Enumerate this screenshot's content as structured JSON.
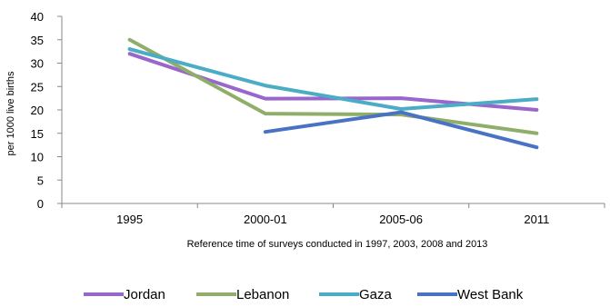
{
  "chart_data": {
    "type": "line",
    "categories": [
      "1995",
      "2000-01",
      "2005-06",
      "2011"
    ],
    "xlabel": "Reference time of surveys  conducted in 1997, 2003, 2008 and 2013",
    "ylabel": "per 1000 live births",
    "ylim": [
      0,
      40
    ],
    "yticks": [
      0,
      5,
      10,
      15,
      20,
      25,
      30,
      35,
      40
    ],
    "grid": false,
    "legend_position": "bottom",
    "series": [
      {
        "name": "Jordan",
        "color": "#9966cc",
        "values": [
          32,
          22.4,
          22.5,
          20
        ]
      },
      {
        "name": "Lebanon",
        "color": "#8fae6a",
        "values": [
          35,
          19.2,
          19,
          15
        ]
      },
      {
        "name": "Gaza",
        "color": "#4bacc6",
        "values": [
          33,
          25.2,
          20.2,
          22.3
        ]
      },
      {
        "name": "West Bank",
        "color": "#4a72c4",
        "values": [
          null,
          15.3,
          19.5,
          12
        ]
      }
    ]
  }
}
